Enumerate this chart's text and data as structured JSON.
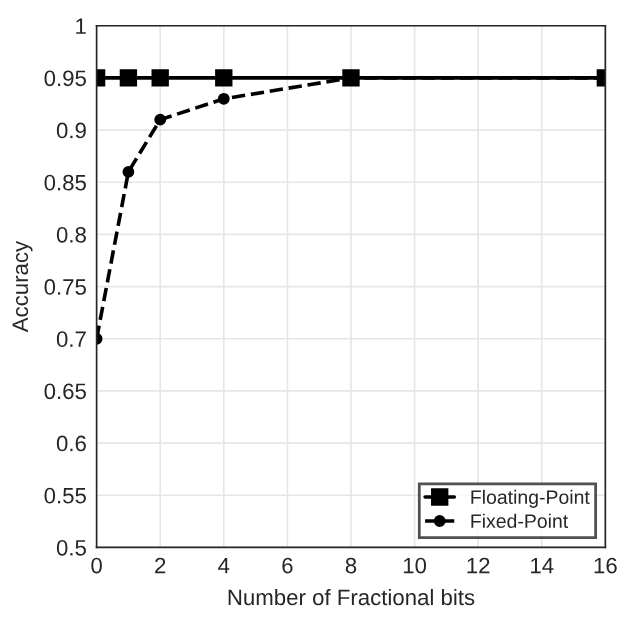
{
  "chart_data": {
    "type": "line",
    "xlabel": "Number of Fractional bits",
    "ylabel": "Accuracy",
    "x": [
      0,
      1,
      2,
      4,
      8,
      16
    ],
    "series": [
      {
        "name": "Floating-Point",
        "color": "#000000",
        "marker": "square",
        "line_style": "solid",
        "values": [
          0.95,
          0.95,
          0.95,
          0.95,
          0.95,
          0.95
        ]
      },
      {
        "name": "Fixed-Point",
        "color": "#000000",
        "marker": "circle",
        "line_style": "dashed",
        "values": [
          0.7,
          0.86,
          0.91,
          0.93,
          0.95,
          0.95
        ]
      }
    ],
    "xlim": [
      0,
      16
    ],
    "xticks": [
      0,
      2,
      4,
      6,
      8,
      10,
      12,
      14,
      16
    ],
    "ylim": [
      0.5,
      1
    ],
    "yticks": [
      0.5,
      0.55,
      0.6,
      0.65,
      0.7,
      0.75,
      0.8,
      0.85,
      0.9,
      0.95,
      1
    ],
    "grid": true,
    "legend": "bottom right"
  }
}
